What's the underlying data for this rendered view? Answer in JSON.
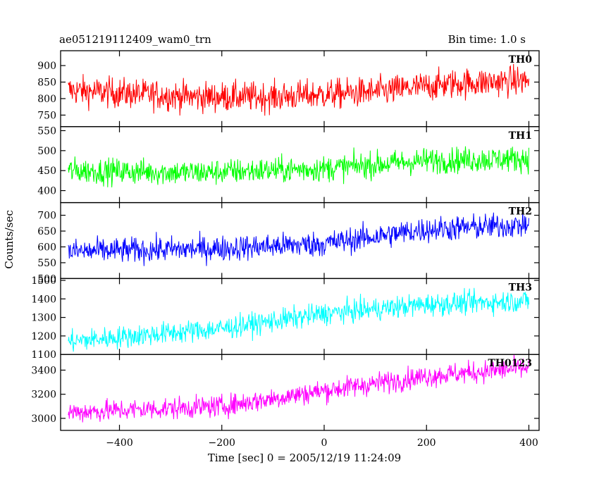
{
  "header": {
    "title": "ae051219112409_wam0_trn",
    "bin_time": "Bin time: 1.0 s"
  },
  "chart_data": {
    "type": "line",
    "xlabel": "Time [sec] 0 = 2005/12/19 11:24:09",
    "ylabel": "Counts/sec",
    "xlim": [
      -515,
      420
    ],
    "x_ticks": [
      -400,
      -200,
      0,
      200,
      400
    ],
    "x_tick_labels": [
      "−400",
      "−200",
      "0",
      "200",
      "400"
    ],
    "x_data_range": [
      -500,
      400
    ],
    "bin_time_sec": 1.0,
    "panels": [
      {
        "label": "TH0",
        "color": "#ff0000",
        "ylim": [
          715,
          945
        ],
        "y_ticks": [
          750,
          800,
          850,
          900
        ],
        "trend": {
          "points": [
            [
              -500,
              825
            ],
            [
              -250,
              805
            ],
            [
              -100,
              805
            ],
            [
              100,
              820
            ],
            [
              250,
              845
            ],
            [
              400,
              855
            ]
          ]
        },
        "noise_amplitude": 45
      },
      {
        "label": "TH1",
        "color": "#00ff00",
        "ylim": [
          370,
          560
        ],
        "y_ticks": [
          400,
          450,
          500,
          550
        ],
        "trend": {
          "points": [
            [
              -500,
              450
            ],
            [
              -250,
              445
            ],
            [
              0,
              455
            ],
            [
              200,
              475
            ],
            [
              400,
              480
            ]
          ]
        },
        "noise_amplitude": 32
      },
      {
        "label": "TH2",
        "color": "#0000ff",
        "ylim": [
          500,
          740
        ],
        "y_ticks": [
          500,
          550,
          600,
          650,
          700
        ],
        "trend": {
          "points": [
            [
              -500,
              585
            ],
            [
              -200,
              595
            ],
            [
              0,
              610
            ],
            [
              200,
              655
            ],
            [
              400,
              670
            ]
          ]
        },
        "noise_amplitude": 40
      },
      {
        "label": "TH3",
        "color": "#00ffff",
        "ylim": [
          1100,
          1510
        ],
        "y_ticks": [
          1100,
          1200,
          1300,
          1400,
          1500
        ],
        "trend": {
          "points": [
            [
              -500,
              1170
            ],
            [
              -200,
              1240
            ],
            [
              0,
              1320
            ],
            [
              200,
              1370
            ],
            [
              400,
              1390
            ]
          ]
        },
        "noise_amplitude": 60
      },
      {
        "label": "TH0123",
        "color": "#ff00ff",
        "ylim": [
          2900,
          3530
        ],
        "y_ticks": [
          3000,
          3200,
          3400
        ],
        "trend": {
          "points": [
            [
              -500,
              3050
            ],
            [
              -200,
              3100
            ],
            [
              0,
              3230
            ],
            [
              200,
              3350
            ],
            [
              400,
              3420
            ]
          ]
        },
        "noise_amplitude": 90
      }
    ],
    "grid": false,
    "legend": "none"
  }
}
